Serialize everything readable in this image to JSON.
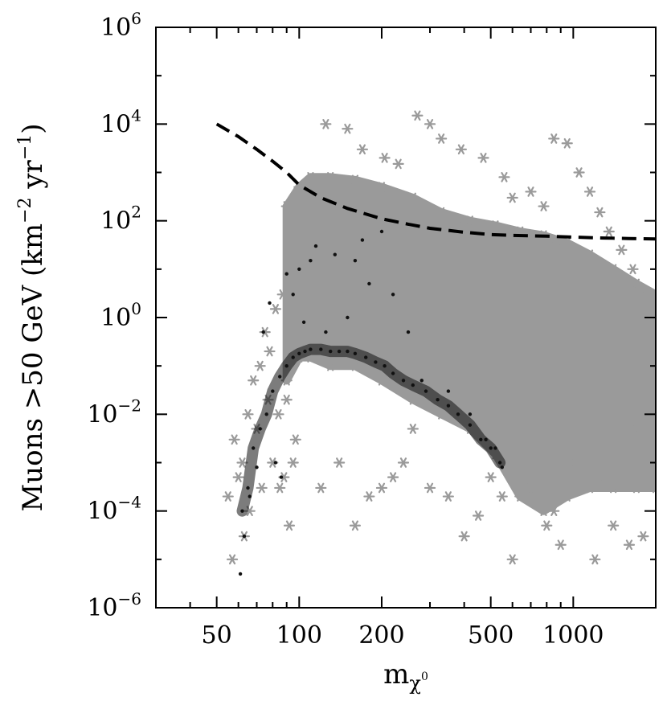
{
  "chart_data": {
    "type": "scatter",
    "xlabel": "m",
    "xlabel_sub": "χ",
    "xlabel_sub_sup": "0",
    "ylabel": "Muons >50 GeV (km^-2 yr^-1)",
    "ylabel_parts": {
      "prefix": "Muons >50 GeV (km",
      "exp1": "−2",
      "mid": " yr",
      "exp2": "−1",
      "suffix": ")"
    },
    "x_scale": "log",
    "y_scale": "log",
    "xlim": [
      30,
      2000
    ],
    "ylim": [
      1e-06,
      1000000.0
    ],
    "x_ticks": [
      {
        "value": 50,
        "label": "50"
      },
      {
        "value": 100,
        "label": "100"
      },
      {
        "value": 200,
        "label": "200"
      },
      {
        "value": 500,
        "label": "500"
      },
      {
        "value": 1000,
        "label": "1000"
      }
    ],
    "y_ticks": [
      {
        "exp": 6,
        "base": "10",
        "label_exp": "6"
      },
      {
        "exp": 4,
        "base": "10",
        "label_exp": "4"
      },
      {
        "exp": 2,
        "base": "10",
        "label_exp": "2"
      },
      {
        "exp": 0,
        "base": "10",
        "label_exp": "0"
      },
      {
        "exp": -2,
        "base": "10",
        "label_exp": "−2"
      },
      {
        "exp": -4,
        "base": "10",
        "label_exp": "−4"
      },
      {
        "exp": -6,
        "base": "10",
        "label_exp": "−6"
      }
    ],
    "grid": false,
    "series": [
      {
        "kind": "dense-band",
        "marker": "asterisk",
        "color": "#9a9a9a",
        "x": [
          90,
          100,
          110,
          130,
          160,
          200,
          260,
          330,
          420,
          520,
          640,
          780,
          950,
          1150,
          1400,
          1700,
          2000,
          2000,
          1700,
          1400,
          1150,
          950,
          780,
          640,
          520,
          420,
          330,
          260,
          200,
          160,
          130,
          110,
          100,
          90
        ],
        "y": [
          200,
          500,
          800,
          800,
          700,
          500,
          300,
          150,
          100,
          80,
          60,
          50,
          35,
          20,
          10,
          5,
          3,
          0.0003,
          0.0003,
          0.0003,
          0.0003,
          0.0002,
          0.0001,
          0.0002,
          0.0015,
          0.005,
          0.01,
          0.02,
          0.05,
          0.1,
          0.1,
          0.15,
          0.15,
          0.05
        ]
      },
      {
        "kind": "sparse",
        "marker": "asterisk",
        "color": "#9a9a9a",
        "x": [
          55,
          57,
          58,
          60,
          62,
          63,
          65,
          66,
          68,
          70,
          72,
          73,
          75,
          77,
          78,
          80,
          82,
          84,
          85,
          87,
          88,
          90,
          92,
          95,
          97,
          120,
          140,
          160,
          180,
          200,
          220,
          240,
          260,
          300,
          350,
          400,
          450,
          500,
          550,
          600,
          650,
          700,
          800,
          850,
          900,
          1000,
          1100,
          1200,
          1300,
          1400,
          1500,
          1600,
          1700,
          1800,
          1900,
          1950,
          125,
          150,
          170,
          205,
          230,
          270,
          300,
          330,
          390,
          470,
          560,
          600,
          700,
          780,
          850,
          950,
          1050,
          1150,
          1250,
          1350,
          1500,
          1650,
          1800,
          1950
        ],
        "y": [
          0.0002,
          1e-05,
          0.003,
          0.0005,
          0.001,
          3e-05,
          0.01,
          0.0001,
          0.05,
          0.005,
          0.1,
          0.0003,
          0.5,
          0.02,
          0.2,
          0.001,
          1.5,
          0.01,
          0.0003,
          3,
          0.0005,
          0.02,
          5e-05,
          0.001,
          0.003,
          0.0003,
          0.001,
          5e-05,
          0.0002,
          0.0003,
          0.0005,
          0.001,
          0.005,
          0.0003,
          0.0002,
          3e-05,
          8e-05,
          0.0005,
          0.0002,
          1e-05,
          0.003,
          0.0003,
          5e-05,
          0.0001,
          2e-05,
          0.001,
          0.0003,
          1e-05,
          0.0005,
          5e-05,
          0.001,
          2e-05,
          0.005,
          3e-05,
          0.05,
          0.5,
          10000,
          8000,
          3000,
          2000,
          1500,
          15000,
          10000,
          5000,
          3000,
          2000,
          800,
          300,
          400,
          200,
          5000,
          4000,
          1000,
          400,
          150,
          60,
          25,
          10,
          3,
          1
        ]
      },
      {
        "kind": "dense-dots",
        "marker": "dot",
        "color": "#111111",
        "x": [
          62,
          65,
          68,
          72,
          76,
          80,
          85,
          90,
          95,
          100,
          105,
          110,
          120,
          130,
          140,
          150,
          160,
          175,
          190,
          205,
          220,
          240,
          260,
          290,
          320,
          350,
          380,
          420,
          460,
          500,
          540
        ],
        "y": [
          0.0001,
          0.0003,
          0.002,
          0.005,
          0.01,
          0.03,
          0.06,
          0.1,
          0.15,
          0.18,
          0.2,
          0.22,
          0.22,
          0.2,
          0.2,
          0.2,
          0.18,
          0.15,
          0.12,
          0.1,
          0.07,
          0.05,
          0.04,
          0.03,
          0.02,
          0.015,
          0.01,
          0.006,
          0.003,
          0.002,
          0.001
        ]
      },
      {
        "kind": "outlier-dots",
        "marker": "dot",
        "color": "#111111",
        "x": [
          61,
          63,
          66,
          70,
          74,
          78,
          82,
          86,
          90,
          95,
          100,
          104,
          110,
          115,
          125,
          135,
          150,
          160,
          170,
          180,
          200,
          220,
          250,
          280,
          350,
          420,
          480,
          520,
          550
        ],
        "y": [
          5e-06,
          3e-05,
          0.0002,
          0.0008,
          0.5,
          2,
          0.001,
          0.0005,
          8,
          3,
          10,
          0.8,
          15,
          30,
          0.5,
          20,
          1,
          15,
          40,
          5,
          60,
          3,
          0.5,
          0.05,
          0.03,
          0.01,
          0.003,
          0.002,
          0.0008
        ]
      },
      {
        "kind": "curve",
        "name": "",
        "style": "dashed",
        "color": "#000000",
        "x": [
          50,
          60,
          70,
          80,
          90,
          100,
          120,
          150,
          200,
          250,
          300,
          400,
          500,
          600,
          800,
          1000,
          1300,
          1600,
          2000
        ],
        "y": [
          10000,
          5500,
          3000,
          1700,
          1000,
          550,
          300,
          180,
          110,
          85,
          70,
          58,
          52,
          50,
          48,
          46,
          44,
          43,
          42
        ]
      }
    ]
  }
}
